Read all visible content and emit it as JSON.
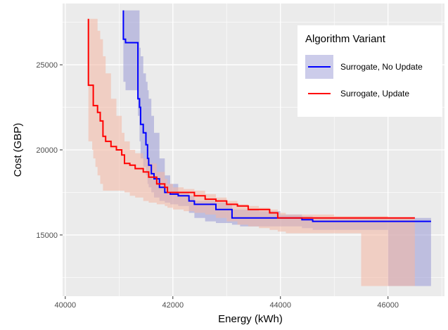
{
  "chart_data": {
    "type": "line",
    "xlabel": "Energy (kWh)",
    "ylabel": "Cost (GBP)",
    "xlim": [
      39950,
      47050
    ],
    "ylim": [
      11400,
      28600
    ],
    "x_ticks": [
      40000,
      42000,
      44000,
      46000
    ],
    "y_ticks": [
      15000,
      20000,
      25000
    ],
    "x_tick_labels": [
      "40000",
      "42000",
      "44000",
      "46000"
    ],
    "y_tick_labels": [
      "15000",
      "20000",
      "25000"
    ],
    "grid": true,
    "legend": {
      "title": "Algorithm Variant",
      "placement": "top-right"
    },
    "series": [
      {
        "name": "Surrogate, No Update",
        "color": "#0000FF",
        "band_color": "#9999D6",
        "x": [
          41080,
          41080,
          41120,
          41350,
          41350,
          41380,
          41400,
          41450,
          41500,
          41530,
          41550,
          41600,
          41650,
          41750,
          41850,
          41950,
          42100,
          42300,
          42400,
          42600,
          42800,
          43000,
          43100,
          43250,
          43600,
          44000,
          44400,
          44600,
          45200,
          46000,
          46500,
          46800
        ],
        "y": [
          28200,
          26500,
          26300,
          26300,
          23000,
          22500,
          21500,
          21000,
          20300,
          19500,
          19100,
          18600,
          18300,
          17800,
          17500,
          17400,
          17300,
          17000,
          16800,
          16800,
          16500,
          16500,
          16000,
          16000,
          16000,
          16000,
          15900,
          15800,
          15800,
          15800,
          15800,
          15800
        ],
        "upper": [
          28200,
          28200,
          28200,
          28200,
          28200,
          26000,
          25500,
          24500,
          24000,
          23500,
          23000,
          22000,
          21000,
          19500,
          18500,
          18000,
          17500,
          17300,
          17000,
          17000,
          16900,
          16800,
          16500,
          16500,
          16400,
          16200,
          16100,
          16000,
          16000,
          16000,
          16000,
          16000
        ],
        "lower": [
          24500,
          24000,
          23500,
          23000,
          22000,
          20500,
          19500,
          19000,
          18500,
          18000,
          17800,
          17500,
          17200,
          17000,
          16900,
          16800,
          16700,
          16300,
          16000,
          15800,
          15700,
          15700,
          15600,
          15500,
          15500,
          15500,
          15400,
          15300,
          15300,
          12000,
          12000,
          12000
        ]
      },
      {
        "name": "Surrogate, Update",
        "color": "#FF0000",
        "band_color": "#F4B6A3",
        "x": [
          40430,
          40430,
          40500,
          40520,
          40560,
          40600,
          40650,
          40700,
          40750,
          40850,
          40950,
          41050,
          41100,
          41200,
          41300,
          41450,
          41550,
          41700,
          41850,
          41900,
          42000,
          42200,
          42400,
          42600,
          42800,
          43000,
          43200,
          43400,
          43600,
          43800,
          43950,
          44100,
          44500,
          45000,
          45500,
          46000,
          46500
        ],
        "y": [
          27700,
          23800,
          23800,
          22600,
          22600,
          22200,
          21700,
          20800,
          20500,
          20200,
          20000,
          19700,
          19200,
          19100,
          18900,
          18700,
          18400,
          18000,
          17800,
          17500,
          17500,
          17500,
          17300,
          17100,
          17000,
          16800,
          16700,
          16500,
          16500,
          16300,
          16000,
          16000,
          16000,
          16000,
          16000,
          16000,
          16000
        ],
        "upper": [
          27700,
          27700,
          27700,
          27700,
          27700,
          27000,
          26500,
          25500,
          24500,
          23000,
          22000,
          21000,
          20500,
          20000,
          19800,
          19500,
          19200,
          18700,
          18300,
          18000,
          17800,
          17700,
          17600,
          17400,
          17200,
          17000,
          16800,
          16700,
          16600,
          16500,
          16300,
          16200,
          16200,
          16100,
          16100,
          16000,
          16000
        ],
        "lower": [
          21000,
          20500,
          20000,
          19500,
          19000,
          18500,
          18000,
          17600,
          17600,
          17600,
          17600,
          17600,
          17500,
          17300,
          17200,
          17000,
          16900,
          16800,
          16700,
          16600,
          16500,
          16400,
          16300,
          16200,
          16000,
          15800,
          15600,
          15500,
          15400,
          15300,
          15200,
          15100,
          15100,
          15100,
          12000,
          12000,
          12000
        ]
      }
    ]
  }
}
